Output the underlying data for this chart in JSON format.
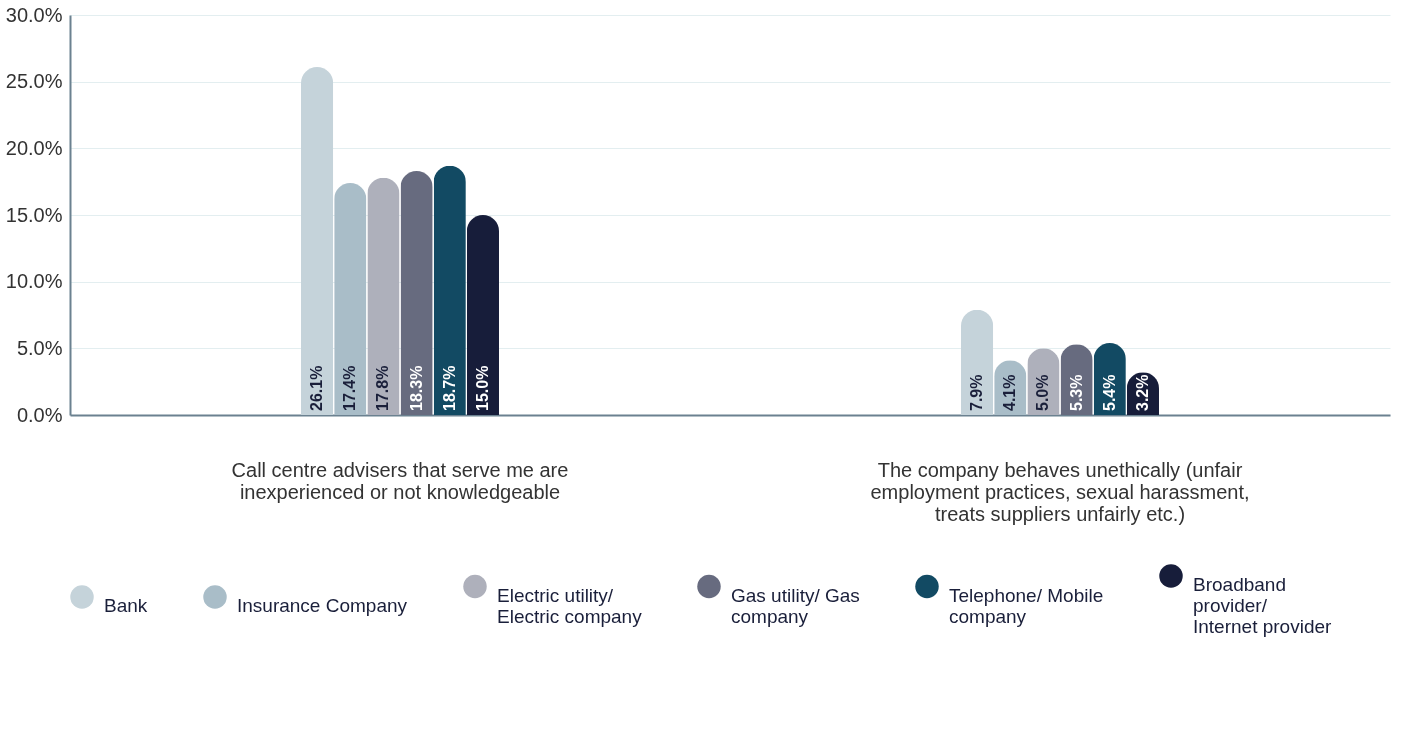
{
  "chart_data": {
    "type": "bar",
    "categories": [
      "Call centre advisers that serve me are inexperienced or not knowledgeable",
      "The company behaves unethically (unfair employment practices, sexual harassment, treats suppliers unfairly etc.)"
    ],
    "series": [
      {
        "name": "Bank",
        "color": "#c5d3da",
        "values": [
          26.1,
          7.9
        ],
        "value_labels": [
          "26.1%",
          "7.9%"
        ]
      },
      {
        "name": "Insurance Company",
        "color": "#a9bdc8",
        "values": [
          17.4,
          4.1
        ],
        "value_labels": [
          "17.4%",
          "4.1%"
        ]
      },
      {
        "name": "Electric utility/ Electric company",
        "color": "#aeb0bb",
        "values": [
          17.8,
          5.0
        ],
        "value_labels": [
          "17.8%",
          "5.0%"
        ]
      },
      {
        "name": "Gas utility/ Gas company",
        "color": "#676b7f",
        "values": [
          18.3,
          5.3
        ],
        "value_labels": [
          "18.3%",
          "5.3%"
        ]
      },
      {
        "name": "Telephone/ Mobile company",
        "color": "#124a63",
        "values": [
          18.7,
          5.4
        ],
        "value_labels": [
          "18.7%",
          "5.4%"
        ]
      },
      {
        "name": "Broadband provider/ Internet provider",
        "color": "#171d3a",
        "values": [
          15.0,
          3.2
        ],
        "value_labels": [
          "15.0%",
          "3.2%"
        ]
      }
    ],
    "ylim": [
      0,
      30
    ],
    "yticks": [
      {
        "value": 0,
        "label": "0.0%"
      },
      {
        "value": 5,
        "label": "5.0%"
      },
      {
        "value": 10,
        "label": "10.0%"
      },
      {
        "value": 15,
        "label": "15.0%"
      },
      {
        "value": 20,
        "label": "20.0%"
      },
      {
        "value": 25,
        "label": "25.0%"
      },
      {
        "value": 30,
        "label": "30.0%"
      }
    ],
    "grid": "y",
    "legend": "bottom"
  }
}
